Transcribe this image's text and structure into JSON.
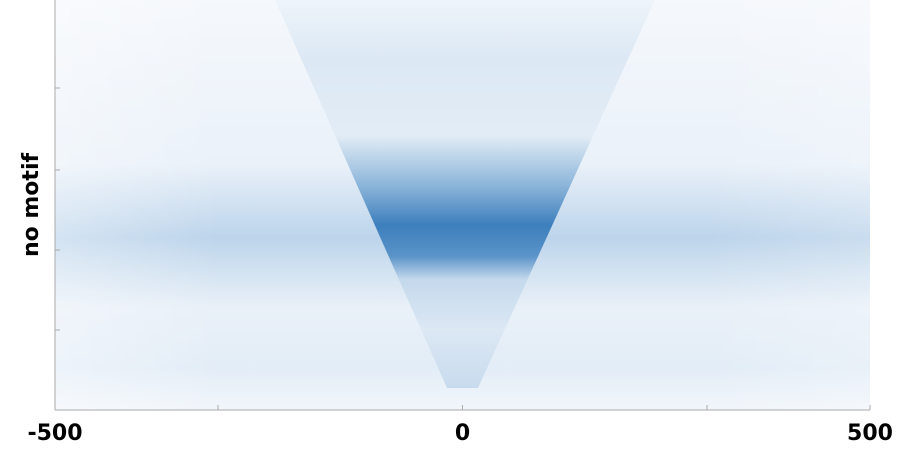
{
  "chart_data": {
    "type": "heatmap",
    "ylabel": "no motif",
    "xlim": [
      -500,
      500
    ],
    "xticks": [
      -500,
      0,
      500
    ]
  }
}
